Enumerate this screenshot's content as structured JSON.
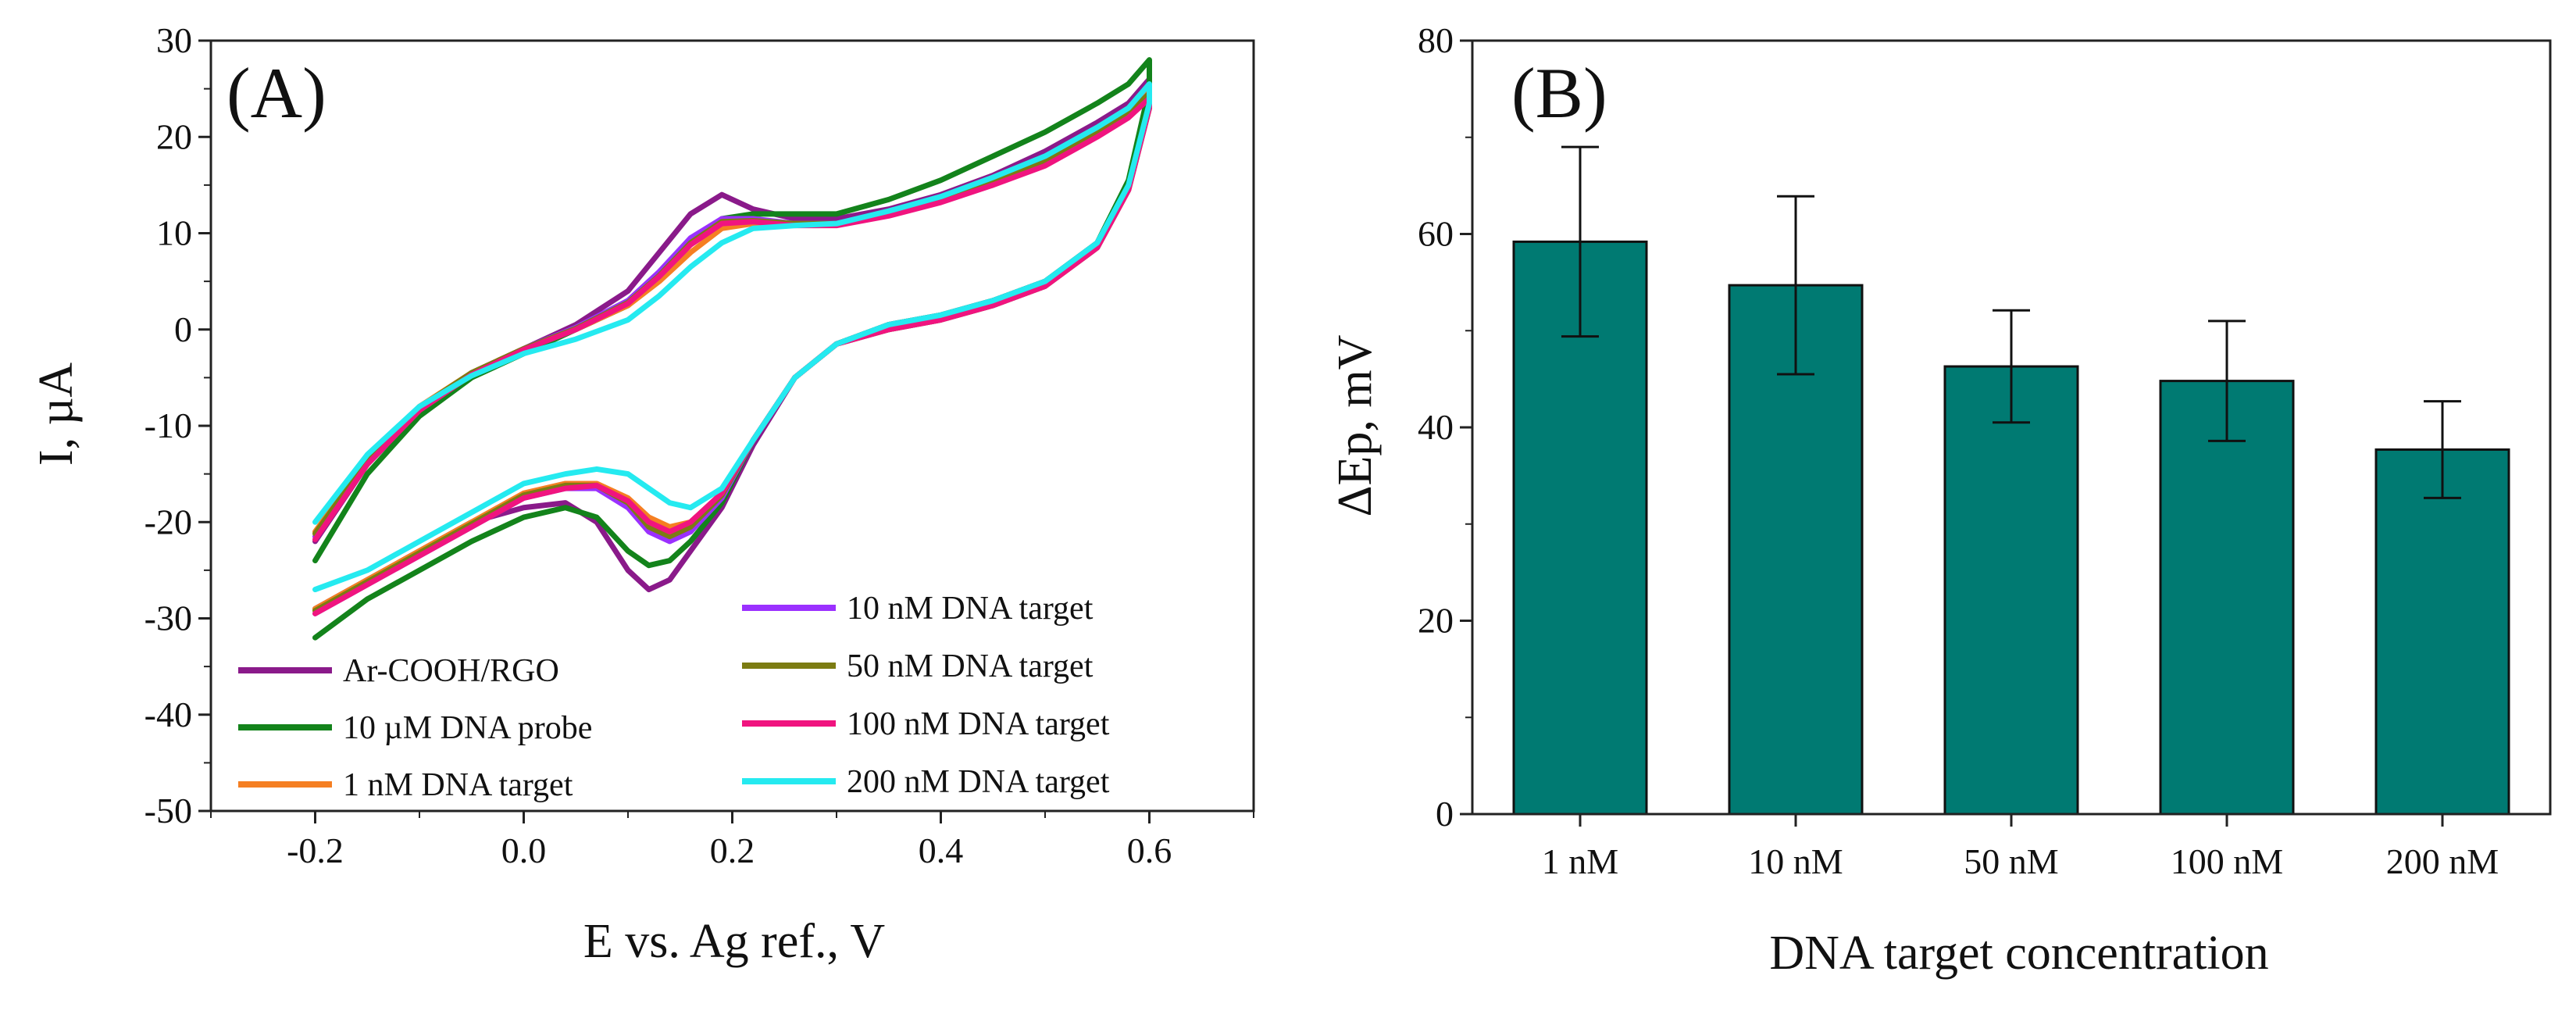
{
  "chart_data": [
    {
      "type": "line",
      "panel_label": "(A)",
      "title": "",
      "xlabel": "E vs. Ag ref., V",
      "ylabel": "I, µA",
      "xlim": [
        -0.3,
        0.7
      ],
      "ylim": [
        -50,
        30
      ],
      "xticks": [
        -0.2,
        0.0,
        0.2,
        0.4,
        0.6
      ],
      "xtick_labels": [
        "-0.2",
        "0.0",
        "0.2",
        "0.4",
        "0.6"
      ],
      "yticks": [
        -50,
        -40,
        -30,
        -20,
        -10,
        0,
        10,
        20,
        30
      ],
      "ytick_labels": [
        "-50",
        "-40",
        "-30",
        "-20",
        "-10",
        "0",
        "10",
        "20",
        "30"
      ],
      "grid": false,
      "legend": "bottom",
      "series": [
        {
          "name": "Ar-COOH/RGO",
          "color": "#8a1a8a",
          "x": [
            -0.2,
            -0.15,
            -0.1,
            -0.05,
            0.0,
            0.05,
            0.1,
            0.13,
            0.16,
            0.19,
            0.22,
            0.26,
            0.3,
            0.35,
            0.4,
            0.45,
            0.5,
            0.55,
            0.58,
            0.6,
            0.6,
            0.58,
            0.55,
            0.5,
            0.45,
            0.4,
            0.35,
            0.3,
            0.26,
            0.22,
            0.19,
            0.16,
            0.14,
            0.12,
            0.1,
            0.07,
            0.04,
            0.0,
            -0.05,
            -0.1,
            -0.15,
            -0.2
          ],
          "y": [
            -22,
            -14,
            -8.5,
            -4.5,
            -2,
            0.5,
            4,
            8,
            12,
            14,
            12.5,
            11.5,
            11.5,
            12.5,
            14,
            16,
            18.5,
            21.5,
            23.5,
            26,
            24,
            15,
            9,
            5,
            3,
            1.5,
            0.5,
            -1.5,
            -5,
            -12,
            -18.5,
            -23,
            -26,
            -27,
            -25,
            -20,
            -18,
            -18.5,
            -20,
            -23,
            -26,
            -29
          ]
        },
        {
          "name": "10 µM DNA probe",
          "color": "#13831b",
          "x": [
            -0.2,
            -0.15,
            -0.1,
            -0.05,
            0.0,
            0.05,
            0.1,
            0.13,
            0.16,
            0.19,
            0.22,
            0.26,
            0.3,
            0.35,
            0.4,
            0.45,
            0.5,
            0.55,
            0.58,
            0.6,
            0.6,
            0.58,
            0.55,
            0.5,
            0.45,
            0.4,
            0.35,
            0.3,
            0.26,
            0.22,
            0.19,
            0.16,
            0.14,
            0.12,
            0.1,
            0.07,
            0.04,
            0.0,
            -0.05,
            -0.1,
            -0.15,
            -0.2
          ],
          "y": [
            -24,
            -15,
            -9,
            -5,
            -2.5,
            0,
            2.5,
            5.5,
            9,
            11.5,
            12,
            12,
            12,
            13.5,
            15.5,
            18,
            20.5,
            23.5,
            25.5,
            28,
            25,
            15.5,
            9,
            5,
            3,
            1.5,
            0.5,
            -1.5,
            -5,
            -11.5,
            -18,
            -22,
            -24,
            -24.5,
            -23,
            -19.5,
            -18.5,
            -19.5,
            -22,
            -25,
            -28,
            -32
          ]
        },
        {
          "name": "1 nM DNA target",
          "color": "#f57f22",
          "x": [
            -0.2,
            -0.15,
            -0.1,
            -0.05,
            0.0,
            0.05,
            0.1,
            0.13,
            0.16,
            0.19,
            0.22,
            0.26,
            0.3,
            0.35,
            0.4,
            0.45,
            0.5,
            0.55,
            0.58,
            0.6,
            0.6,
            0.58,
            0.55,
            0.5,
            0.45,
            0.4,
            0.35,
            0.3,
            0.26,
            0.22,
            0.19,
            0.16,
            0.14,
            0.12,
            0.1,
            0.07,
            0.04,
            0.0,
            -0.05,
            -0.1,
            -0.15,
            -0.2
          ],
          "y": [
            -21,
            -13.5,
            -8,
            -4.5,
            -2,
            0,
            2.5,
            5,
            8,
            10.5,
            11,
            11,
            11,
            12,
            13.5,
            15.5,
            17.5,
            20.5,
            22.5,
            25,
            23,
            14.5,
            8.5,
            4.5,
            2.5,
            1,
            0,
            -1.5,
            -5,
            -11.5,
            -17,
            -20,
            -20.5,
            -19.5,
            -17.5,
            -16,
            -16,
            -17,
            -20,
            -23,
            -26,
            -29
          ]
        },
        {
          "name": "10 nM DNA target",
          "color": "#9b30ff",
          "x": [
            -0.2,
            -0.15,
            -0.1,
            -0.05,
            0.0,
            0.05,
            0.1,
            0.13,
            0.16,
            0.19,
            0.22,
            0.26,
            0.3,
            0.35,
            0.4,
            0.45,
            0.5,
            0.55,
            0.58,
            0.6,
            0.6,
            0.58,
            0.55,
            0.5,
            0.45,
            0.4,
            0.35,
            0.3,
            0.26,
            0.22,
            0.19,
            0.16,
            0.14,
            0.12,
            0.1,
            0.07,
            0.04,
            0.0,
            -0.05,
            -0.1,
            -0.15,
            -0.2
          ],
          "y": [
            -21.5,
            -13.8,
            -8.2,
            -4.6,
            -2,
            0.2,
            3,
            6,
            9.5,
            11.5,
            11.5,
            11,
            11,
            12,
            13.5,
            15.5,
            17.5,
            20.5,
            22.5,
            24.5,
            23,
            14.5,
            8.5,
            4.5,
            2.5,
            1,
            0,
            -1.5,
            -5,
            -11.5,
            -17.5,
            -21,
            -22,
            -21,
            -18.5,
            -16.5,
            -16.5,
            -17.5,
            -20.5,
            -23.5,
            -26.5,
            -29.5
          ]
        },
        {
          "name": "50 nM DNA target",
          "color": "#7c7c12",
          "x": [
            -0.2,
            -0.15,
            -0.1,
            -0.05,
            0.0,
            0.05,
            0.1,
            0.13,
            0.16,
            0.19,
            0.22,
            0.26,
            0.3,
            0.35,
            0.4,
            0.45,
            0.5,
            0.55,
            0.58,
            0.6,
            0.6,
            0.58,
            0.55,
            0.5,
            0.45,
            0.4,
            0.35,
            0.3,
            0.26,
            0.22,
            0.19,
            0.16,
            0.14,
            0.12,
            0.1,
            0.07,
            0.04,
            0.0,
            -0.05,
            -0.1,
            -0.15,
            -0.2
          ],
          "y": [
            -21.2,
            -13.6,
            -8.1,
            -4.5,
            -2,
            0.1,
            2.8,
            5.6,
            9,
            11.2,
            11.3,
            11,
            11,
            12,
            13.5,
            15.5,
            17.5,
            20.5,
            22.5,
            24.5,
            23,
            14.5,
            8.5,
            4.5,
            2.5,
            1,
            0,
            -1.5,
            -5,
            -11.5,
            -17.2,
            -20.5,
            -21.5,
            -20.5,
            -18,
            -16.2,
            -16.2,
            -17.2,
            -20.2,
            -23.2,
            -26.2,
            -29.2
          ]
        },
        {
          "name": "100 nM DNA target",
          "color": "#f0147f",
          "x": [
            -0.2,
            -0.15,
            -0.1,
            -0.05,
            0.0,
            0.05,
            0.1,
            0.13,
            0.16,
            0.19,
            0.22,
            0.26,
            0.3,
            0.35,
            0.4,
            0.45,
            0.5,
            0.55,
            0.58,
            0.6,
            0.6,
            0.58,
            0.55,
            0.5,
            0.45,
            0.4,
            0.35,
            0.3,
            0.26,
            0.22,
            0.19,
            0.16,
            0.14,
            0.12,
            0.1,
            0.07,
            0.04,
            0.0,
            -0.05,
            -0.1,
            -0.15,
            -0.2
          ],
          "y": [
            -21.8,
            -14,
            -8.4,
            -4.7,
            -2.1,
            0,
            2.7,
            5.5,
            8.8,
            11,
            11.2,
            10.8,
            10.8,
            11.8,
            13.2,
            15,
            17,
            20,
            22,
            24,
            23,
            14.5,
            8.5,
            4.5,
            2.5,
            1,
            0,
            -1.5,
            -5,
            -11.5,
            -17,
            -20,
            -21,
            -20,
            -17.8,
            -16.2,
            -16.5,
            -17.5,
            -20.5,
            -23.5,
            -26.5,
            -29.5
          ]
        },
        {
          "name": "200 nM DNA target",
          "color": "#25eaf0",
          "x": [
            -0.2,
            -0.15,
            -0.1,
            -0.05,
            0.0,
            0.05,
            0.1,
            0.13,
            0.16,
            0.19,
            0.22,
            0.26,
            0.3,
            0.35,
            0.4,
            0.45,
            0.5,
            0.55,
            0.58,
            0.6,
            0.6,
            0.58,
            0.55,
            0.5,
            0.45,
            0.4,
            0.35,
            0.3,
            0.26,
            0.22,
            0.19,
            0.16,
            0.14,
            0.12,
            0.1,
            0.07,
            0.04,
            0.0,
            -0.05,
            -0.1,
            -0.15,
            -0.2
          ],
          "y": [
            -20,
            -13,
            -8,
            -4.8,
            -2.5,
            -1,
            1,
            3.5,
            6.5,
            9,
            10.5,
            10.8,
            11,
            12.3,
            13.8,
            15.8,
            18,
            21,
            23,
            25.5,
            23.5,
            15,
            9,
            5,
            3,
            1.5,
            0.5,
            -1.5,
            -5,
            -11.5,
            -16.5,
            -18.5,
            -18,
            -16.5,
            -15,
            -14.5,
            -15,
            -16,
            -19,
            -22,
            -25,
            -27
          ]
        }
      ],
      "legend_entries_col1": [
        "Ar-COOH/RGO",
        "10 µM DNA probe",
        "1 nM DNA target"
      ],
      "legend_entries_col2": [
        "10 nM DNA target",
        "50 nM DNA target",
        "100 nM DNA target",
        "200 nM DNA target"
      ]
    },
    {
      "type": "bar",
      "panel_label": "(B)",
      "title": "",
      "xlabel": "DNA target concentration",
      "ylabel": "ΔEp, mV",
      "categories": [
        "1 nM",
        "10 nM",
        "50 nM",
        "100 nM",
        "200 nM"
      ],
      "values": [
        59.2,
        54.7,
        46.3,
        44.8,
        37.7
      ],
      "errors": [
        9.8,
        9.2,
        5.8,
        6.2,
        5.0
      ],
      "ylim": [
        0,
        80
      ],
      "yticks": [
        0,
        20,
        40,
        60,
        80
      ],
      "ytick_labels": [
        "0",
        "20",
        "40",
        "60",
        "80"
      ],
      "bar_color": "#007a72",
      "grid": false
    }
  ]
}
